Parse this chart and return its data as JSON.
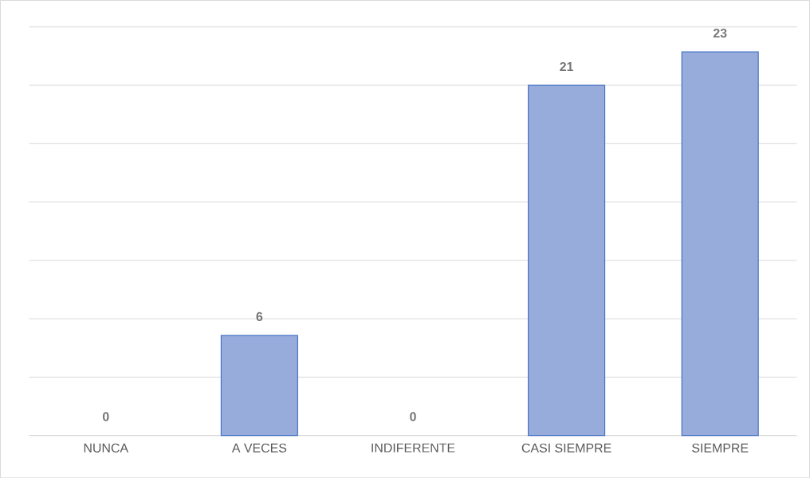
{
  "chart_data": {
    "type": "bar",
    "categories": [
      "NUNCA",
      "A VECES",
      "INDIFERENTE",
      "CASI SIEMPRE",
      "SIEMPRE"
    ],
    "values": [
      0,
      6,
      0,
      21,
      23
    ],
    "color": "#98acdc",
    "data_labels": true,
    "grid": "y",
    "ylim": [
      0,
      24.5
    ],
    "yticks": [
      {
        "value": 0,
        "label": null
      },
      {
        "value": 3.5,
        "label": null
      },
      {
        "value": 7,
        "label": null
      },
      {
        "value": 10.5,
        "label": null
      },
      {
        "value": 14,
        "label": null
      },
      {
        "value": 17.5,
        "label": null
      },
      {
        "value": 21,
        "label": null
      },
      {
        "value": 24.5,
        "label": null
      }
    ]
  }
}
